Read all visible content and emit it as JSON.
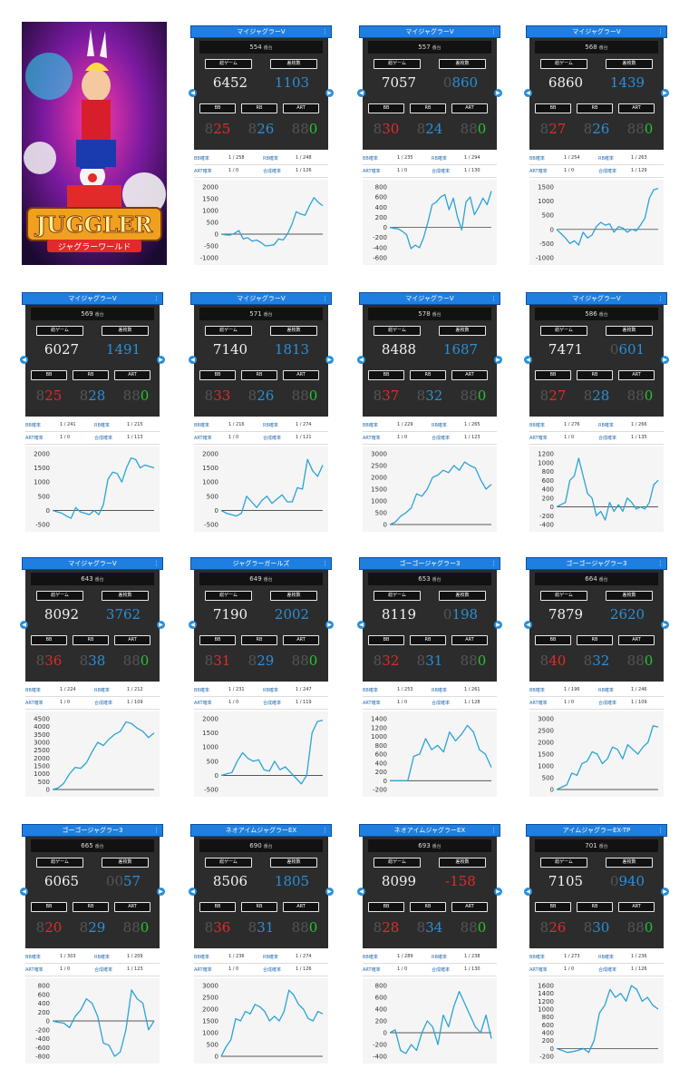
{
  "logo": {
    "title": "JUGGLER",
    "subtitle": "ジャグラーワールド"
  },
  "labels": {
    "total_games": "総ゲーム",
    "diff_coins": "差枚数",
    "bb": "BB",
    "rb": "RB",
    "art": "ART",
    "unit": "番台",
    "bb_rate": "BB確率",
    "rb_rate": "RB確率",
    "art_rate": "ART確率",
    "total_rate": "合成確率"
  },
  "colors": {
    "header": "#1f7fe0",
    "positive": "#2a8fd8",
    "negative": "#e22a2a",
    "art": "#26c431",
    "line": "#2aa3d8"
  },
  "cards": [
    {
      "machine": "マイジャグラーV",
      "number": "554",
      "games": "6452",
      "diff": "1103",
      "bb": "25",
      "rb": "26",
      "art": "0",
      "bb_rate": "1 / 258",
      "rb_rate": "1 / 248",
      "art_rate": "1 / 0",
      "total_rate": "1 / 126",
      "chart_data": {
        "type": "line",
        "y_ticks": [
          2000,
          1500,
          1000,
          500,
          0,
          -500,
          -1000
        ],
        "y": [
          0,
          -30,
          -40,
          30,
          150,
          -200,
          -150,
          -300,
          -250,
          -350,
          -500,
          -480,
          -450,
          -200,
          -250,
          0,
          400,
          950,
          850,
          800,
          1200,
          1550,
          1350,
          1200
        ]
      }
    },
    {
      "machine": "マイジャグラーV",
      "number": "557",
      "games": "7057",
      "diff": "860",
      "diff_ghost": "0",
      "bb": "30",
      "rb": "24",
      "art": "0",
      "bb_rate": "1 / 235",
      "rb_rate": "1 / 294",
      "art_rate": "1 / 0",
      "total_rate": "1 / 130",
      "chart_data": {
        "type": "line",
        "y_ticks": [
          800,
          600,
          400,
          200,
          0,
          -200,
          -400,
          -600
        ],
        "y": [
          0,
          -20,
          -30,
          -80,
          -150,
          -420,
          -350,
          -400,
          -200,
          100,
          450,
          500,
          600,
          650,
          350,
          580,
          200,
          -50,
          500,
          600,
          250,
          400,
          580,
          450,
          720
        ]
      }
    },
    {
      "machine": "マイジャグラーV",
      "number": "568",
      "games": "6860",
      "diff": "1439",
      "bb": "27",
      "rb": "26",
      "art": "0",
      "bb_rate": "1 / 254",
      "rb_rate": "1 / 263",
      "art_rate": "1 / 0",
      "total_rate": "1 / 129",
      "chart_data": {
        "type": "line",
        "y_ticks": [
          1500,
          1000,
          500,
          0,
          -500,
          -1000
        ],
        "y": [
          0,
          -150,
          -300,
          -500,
          -400,
          -550,
          -100,
          -300,
          -200,
          100,
          250,
          150,
          200,
          -100,
          100,
          50,
          -100,
          0,
          -50,
          150,
          400,
          1100,
          1400,
          1450
        ]
      }
    },
    {
      "machine": "マイジャグラーV",
      "number": "569",
      "games": "6027",
      "diff": "1491",
      "bb": "25",
      "rb": "28",
      "art": "0",
      "bb_rate": "1 / 241",
      "rb_rate": "1 / 215",
      "art_rate": "1 / 0",
      "total_rate": "1 / 113",
      "chart_data": {
        "type": "line",
        "y_ticks": [
          2000,
          1500,
          1000,
          500,
          0,
          -500
        ],
        "y": [
          0,
          -50,
          -100,
          -200,
          -280,
          100,
          -50,
          -100,
          -150,
          0,
          -150,
          200,
          1100,
          1350,
          1300,
          1000,
          1500,
          1850,
          1800,
          1500,
          1600,
          1550,
          1500
        ]
      }
    },
    {
      "machine": "マイジャグラーV",
      "number": "571",
      "games": "7140",
      "diff": "1813",
      "bb": "33",
      "rb": "26",
      "art": "0",
      "bb_rate": "1 / 216",
      "rb_rate": "1 / 274",
      "art_rate": "1 / 0",
      "total_rate": "1 / 121",
      "chart_data": {
        "type": "line",
        "y_ticks": [
          2000,
          1500,
          1000,
          500,
          0,
          -500
        ],
        "y": [
          0,
          -100,
          -150,
          -200,
          -100,
          500,
          300,
          100,
          350,
          500,
          250,
          400,
          550,
          300,
          300,
          800,
          750,
          1800,
          1400,
          1200,
          1600
        ]
      }
    },
    {
      "machine": "マイジャグラーV",
      "number": "578",
      "games": "8488",
      "diff": "1687",
      "bb": "37",
      "rb": "32",
      "art": "0",
      "bb_rate": "1 / 229",
      "rb_rate": "1 / 265",
      "art_rate": "1 / 0",
      "total_rate": "1 / 123",
      "chart_data": {
        "type": "line",
        "y_ticks": [
          3000,
          2500,
          2000,
          1500,
          1000,
          500,
          0
        ],
        "y": [
          0,
          100,
          350,
          500,
          700,
          1300,
          1200,
          1500,
          2000,
          2100,
          2300,
          2200,
          2500,
          2300,
          2650,
          2500,
          2400,
          1900,
          1500,
          1700
        ]
      }
    },
    {
      "machine": "マイジャグラーV",
      "number": "586",
      "games": "7471",
      "diff": "601",
      "diff_ghost": "0",
      "bb": "27",
      "rb": "28",
      "art": "0",
      "bb_rate": "1 / 276",
      "rb_rate": "1 / 266",
      "art_rate": "1 / 0",
      "total_rate": "1 / 135",
      "chart_data": {
        "type": "line",
        "y_ticks": [
          1200,
          1000,
          800,
          600,
          400,
          200,
          0,
          -200,
          -400
        ],
        "y": [
          0,
          50,
          100,
          600,
          700,
          1100,
          700,
          300,
          200,
          -200,
          -100,
          -300,
          100,
          -100,
          50,
          -100,
          200,
          100,
          -50,
          0,
          -50,
          100,
          500,
          600
        ]
      }
    },
    {
      "machine": "マイジャグラーV",
      "number": "643",
      "games": "8092",
      "diff": "3762",
      "bb": "36",
      "rb": "38",
      "art": "0",
      "bb_rate": "1 / 224",
      "rb_rate": "1 / 212",
      "art_rate": "1 / 0",
      "total_rate": "1 / 109",
      "chart_data": {
        "type": "line",
        "y_ticks": [
          4500,
          4000,
          3500,
          3000,
          2500,
          2000,
          1500,
          1000,
          500,
          0
        ],
        "y": [
          0,
          100,
          400,
          1000,
          1400,
          1350,
          1700,
          2400,
          3000,
          2800,
          3200,
          3500,
          3700,
          4300,
          4200,
          3900,
          3700,
          3300,
          3600
        ]
      }
    },
    {
      "machine": "ジャグラーガールズ",
      "number": "649",
      "games": "7190",
      "diff": "2002",
      "bb": "31",
      "rb": "29",
      "art": "0",
      "bb_rate": "1 / 231",
      "rb_rate": "1 / 247",
      "art_rate": "1 / 0",
      "total_rate": "1 / 119",
      "chart_data": {
        "type": "line",
        "y_ticks": [
          2000,
          1500,
          1000,
          500,
          0,
          -500
        ],
        "y": [
          0,
          50,
          100,
          500,
          800,
          600,
          500,
          550,
          200,
          150,
          500,
          200,
          300,
          100,
          -100,
          -300,
          0,
          1500,
          1900,
          1950
        ]
      }
    },
    {
      "machine": "ゴーゴージャグラー3",
      "number": "653",
      "games": "8119",
      "diff": "198",
      "diff_ghost": "0",
      "bb": "32",
      "rb": "31",
      "art": "0",
      "bb_rate": "1 / 253",
      "rb_rate": "1 / 261",
      "art_rate": "1 / 0",
      "total_rate": "1 / 128",
      "chart_data": {
        "type": "line",
        "y_ticks": [
          1400,
          1200,
          1000,
          800,
          600,
          400,
          200,
          0,
          -200
        ],
        "y": [
          0,
          0,
          0,
          0,
          550,
          600,
          950,
          700,
          800,
          650,
          1100,
          900,
          1050,
          1250,
          1100,
          700,
          600,
          300
        ]
      }
    },
    {
      "machine": "ゴーゴージャグラー3",
      "number": "664",
      "games": "7879",
      "diff": "2620",
      "bb": "40",
      "rb": "32",
      "art": "0",
      "bb_rate": "1 / 196",
      "rb_rate": "1 / 246",
      "art_rate": "1 / 0",
      "total_rate": "1 / 109",
      "chart_data": {
        "type": "line",
        "y_ticks": [
          3000,
          2500,
          2000,
          1500,
          1000,
          500,
          0
        ],
        "y": [
          0,
          100,
          200,
          700,
          600,
          1100,
          1200,
          1600,
          1500,
          1100,
          1300,
          1800,
          1700,
          1300,
          1900,
          1700,
          1500,
          1800,
          2000,
          2700,
          2650
        ]
      }
    },
    {
      "machine": "ゴーゴージャグラー3",
      "number": "665",
      "games": "6065",
      "diff": "57",
      "diff_ghost": "00",
      "bb": "20",
      "rb": "29",
      "art": "0",
      "bb_rate": "1 / 303",
      "rb_rate": "1 / 209",
      "art_rate": "1 / 0",
      "total_rate": "1 / 123",
      "chart_data": {
        "type": "line",
        "y_ticks": [
          800,
          600,
          400,
          200,
          0,
          -200,
          -400,
          -600,
          -800
        ],
        "y": [
          0,
          -30,
          -50,
          -150,
          100,
          250,
          500,
          400,
          100,
          -500,
          -550,
          -800,
          -700,
          -200,
          700,
          500,
          400,
          -200,
          0
        ]
      }
    },
    {
      "machine": "ネオアイムジャグラーEX",
      "number": "690",
      "games": "8506",
      "diff": "1805",
      "bb": "36",
      "rb": "31",
      "art": "0",
      "bb_rate": "1 / 236",
      "rb_rate": "1 / 274",
      "art_rate": "1 / 0",
      "total_rate": "1 / 126",
      "chart_data": {
        "type": "line",
        "y_ticks": [
          3000,
          2500,
          2000,
          1500,
          1000,
          500,
          0
        ],
        "y": [
          0,
          400,
          700,
          1600,
          1500,
          1900,
          1800,
          2200,
          2100,
          1900,
          1500,
          1700,
          1500,
          1900,
          2800,
          2600,
          2200,
          2000,
          1600,
          1500,
          1900,
          1800
        ]
      }
    },
    {
      "machine": "ネオアイムジャグラーEX",
      "number": "693",
      "games": "8099",
      "diff": "-158",
      "negative": true,
      "bb": "28",
      "rb": "34",
      "art": "0",
      "bb_rate": "1 / 289",
      "rb_rate": "1 / 238",
      "art_rate": "1 / 0",
      "total_rate": "1 / 130",
      "chart_data": {
        "type": "line",
        "y_ticks": [
          800,
          600,
          400,
          200,
          0,
          -200,
          -400
        ],
        "y": [
          0,
          50,
          -300,
          -350,
          -200,
          -300,
          0,
          200,
          100,
          -200,
          300,
          100,
          450,
          700,
          500,
          300,
          100,
          0,
          300,
          -100
        ]
      }
    },
    {
      "machine": "アイムジャグラーEX-TP",
      "number": "701",
      "games": "7105",
      "diff": "940",
      "diff_ghost": "0",
      "bb": "26",
      "rb": "30",
      "art": "0",
      "bb_rate": "1 / 273",
      "rb_rate": "1 / 236",
      "art_rate": "1 / 0",
      "total_rate": "1 / 126",
      "chart_data": {
        "type": "line",
        "y_ticks": [
          1600,
          1400,
          1200,
          1000,
          800,
          600,
          400,
          200,
          0,
          -200
        ],
        "y": [
          0,
          -50,
          -100,
          -80,
          -50,
          0,
          -100,
          200,
          900,
          1100,
          1500,
          1300,
          1400,
          1200,
          1600,
          1500,
          1200,
          1300,
          1100,
          1000
        ]
      }
    }
  ]
}
